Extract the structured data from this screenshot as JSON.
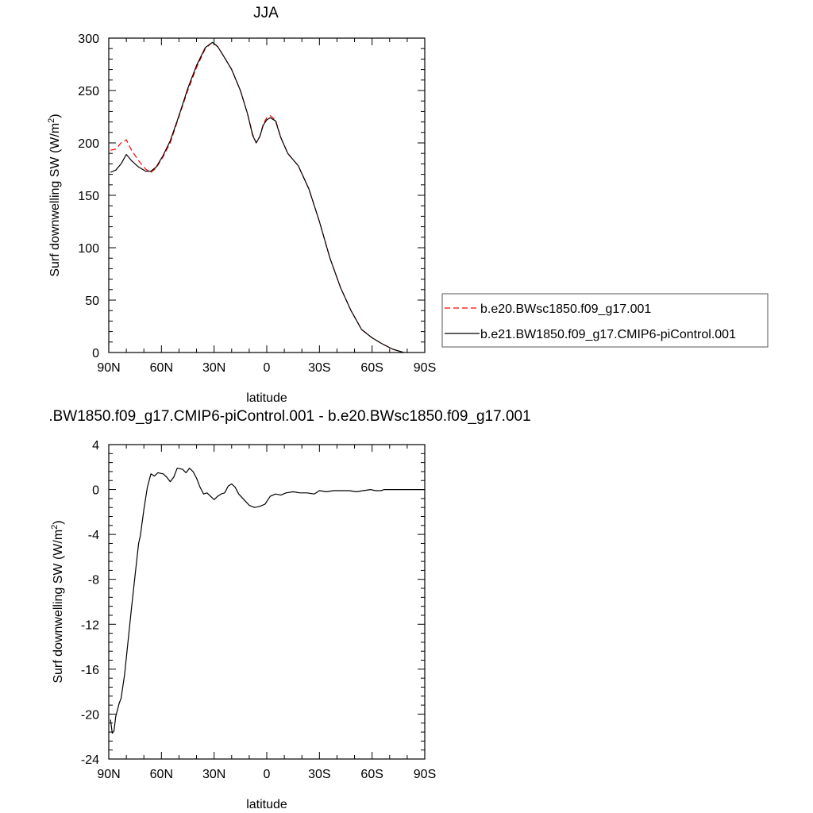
{
  "chart_data": [
    {
      "type": "line",
      "title": "JJA",
      "xlabel": "latitude",
      "ylabel": "Surf downwelling SW (W/m",
      "ylabel_sup": "2",
      "ylabel_close": ")",
      "xlim": [
        90,
        -90
      ],
      "ylim": [
        0,
        300
      ],
      "x_ticks": [
        {
          "v": 90,
          "label": "90N"
        },
        {
          "v": 60,
          "label": "60N"
        },
        {
          "v": 30,
          "label": "30N"
        },
        {
          "v": 0,
          "label": "0"
        },
        {
          "v": -30,
          "label": "30S"
        },
        {
          "v": -60,
          "label": "60S"
        },
        {
          "v": -90,
          "label": "90S"
        }
      ],
      "y_ticks": [
        {
          "v": 0,
          "label": "0"
        },
        {
          "v": 50,
          "label": "50"
        },
        {
          "v": 100,
          "label": "100"
        },
        {
          "v": 150,
          "label": "150"
        },
        {
          "v": 200,
          "label": "200"
        },
        {
          "v": 250,
          "label": "250"
        },
        {
          "v": 300,
          "label": "300"
        }
      ],
      "legend_position": "right",
      "series": [
        {
          "name": "b.e20.BWsc1850.f09_g17.001",
          "color": "#ff0000",
          "dash": true,
          "points": [
            [
              89,
              193
            ],
            [
              86,
              194
            ],
            [
              83,
              200
            ],
            [
              80,
              203
            ],
            [
              77,
              193
            ],
            [
              73,
              183
            ],
            [
              69,
              175
            ],
            [
              66,
              172
            ],
            [
              63,
              176
            ],
            [
              59,
              187
            ],
            [
              55,
              200
            ],
            [
              50,
              225
            ],
            [
              45,
              250
            ],
            [
              40,
              272
            ],
            [
              35,
              290
            ],
            [
              31,
              296
            ],
            [
              28,
              292
            ],
            [
              25,
              284
            ],
            [
              20,
              270
            ],
            [
              15,
              250
            ],
            [
              11,
              228
            ],
            [
              8,
              208
            ],
            [
              6,
              200
            ],
            [
              4,
              206
            ],
            [
              2,
              218
            ],
            [
              0,
              224
            ],
            [
              -2,
              226
            ],
            [
              -5,
              222
            ],
            [
              -8,
              205
            ],
            [
              -12,
              190
            ],
            [
              -18,
              178
            ],
            [
              -24,
              156
            ],
            [
              -30,
              125
            ],
            [
              -36,
              90
            ],
            [
              -42,
              62
            ],
            [
              -48,
              40
            ],
            [
              -54,
              22
            ],
            [
              -60,
              14
            ],
            [
              -66,
              8
            ],
            [
              -72,
              3
            ],
            [
              -78,
              0
            ]
          ]
        },
        {
          "name": "b.e21.BW1850.f09_g17.CMIP6-piControl.001",
          "color": "#000000",
          "dash": false,
          "points": [
            [
              89,
              172
            ],
            [
              86,
              174
            ],
            [
              83,
              180
            ],
            [
              80,
              189
            ],
            [
              77,
              183
            ],
            [
              73,
              177
            ],
            [
              69,
              173
            ],
            [
              66,
              173
            ],
            [
              63,
              177
            ],
            [
              59,
              188
            ],
            [
              55,
              202
            ],
            [
              50,
              226
            ],
            [
              45,
              252
            ],
            [
              40,
              274
            ],
            [
              35,
              291
            ],
            [
              31,
              296
            ],
            [
              28,
              292
            ],
            [
              25,
              284
            ],
            [
              20,
              270
            ],
            [
              15,
              250
            ],
            [
              11,
              228
            ],
            [
              8,
              207
            ],
            [
              6,
              200
            ],
            [
              4,
              206
            ],
            [
              2,
              217
            ],
            [
              0,
              222
            ],
            [
              -2,
              224
            ],
            [
              -5,
              221
            ],
            [
              -8,
              205
            ],
            [
              -12,
              190
            ],
            [
              -18,
              178
            ],
            [
              -24,
              156
            ],
            [
              -30,
              125
            ],
            [
              -36,
              90
            ],
            [
              -42,
              62
            ],
            [
              -48,
              40
            ],
            [
              -54,
              22
            ],
            [
              -60,
              14
            ],
            [
              -66,
              8
            ],
            [
              -72,
              3
            ],
            [
              -78,
              0
            ]
          ]
        }
      ]
    },
    {
      "type": "line",
      "title": ".BW1850.f09_g17.CMIP6-piControl.001 - b.e20.BWsc1850.f09_g17.001",
      "xlabel": "latitude",
      "ylabel": "Surf downwelling SW (W/m",
      "ylabel_sup": "2",
      "ylabel_close": ")",
      "xlim": [
        90,
        -90
      ],
      "ylim": [
        -24,
        4
      ],
      "x_ticks": [
        {
          "v": 90,
          "label": "90N"
        },
        {
          "v": 60,
          "label": "60N"
        },
        {
          "v": 30,
          "label": "30N"
        },
        {
          "v": 0,
          "label": "0"
        },
        {
          "v": -30,
          "label": "30S"
        },
        {
          "v": -60,
          "label": "60S"
        },
        {
          "v": -90,
          "label": "90S"
        }
      ],
      "y_ticks": [
        {
          "v": 4,
          "label": "4"
        },
        {
          "v": 0,
          "label": "0"
        },
        {
          "v": -4,
          "label": "-4"
        },
        {
          "v": -8,
          "label": "-8"
        },
        {
          "v": -12,
          "label": "-12"
        },
        {
          "v": -16,
          "label": "-16"
        },
        {
          "v": -20,
          "label": "-20"
        },
        {
          "v": -24,
          "label": "-24"
        }
      ],
      "series": [
        {
          "name": "",
          "color": "#000000",
          "dash": false,
          "points": [
            [
              89,
              -20.5
            ],
            [
              88,
              -21.7
            ],
            [
              87,
              -21.5
            ],
            [
              86,
              -20.2
            ],
            [
              84,
              -19.0
            ],
            [
              83,
              -18.6
            ],
            [
              81,
              -16.5
            ],
            [
              79,
              -13.5
            ],
            [
              77,
              -10.5
            ],
            [
              75,
              -7.6
            ],
            [
              73,
              -4.8
            ],
            [
              72,
              -4.1
            ],
            [
              70,
              -1.8
            ],
            [
              68,
              0.2
            ],
            [
              66,
              1.4
            ],
            [
              64,
              1.2
            ],
            [
              62,
              1.5
            ],
            [
              59,
              1.4
            ],
            [
              57,
              1.1
            ],
            [
              55,
              0.7
            ],
            [
              53,
              1.1
            ],
            [
              51,
              1.9
            ],
            [
              48,
              1.8
            ],
            [
              46,
              1.5
            ],
            [
              44,
              1.9
            ],
            [
              42,
              1.6
            ],
            [
              40,
              1.0
            ],
            [
              38,
              0.2
            ],
            [
              36,
              -0.4
            ],
            [
              34,
              -0.3
            ],
            [
              32,
              -0.6
            ],
            [
              30,
              -0.9
            ],
            [
              28,
              -0.6
            ],
            [
              26,
              -0.4
            ],
            [
              24,
              -0.3
            ],
            [
              22,
              0.3
            ],
            [
              20,
              0.5
            ],
            [
              18,
              0.2
            ],
            [
              16,
              -0.4
            ],
            [
              13,
              -0.9
            ],
            [
              10,
              -1.4
            ],
            [
              7,
              -1.6
            ],
            [
              4,
              -1.5
            ],
            [
              1,
              -1.3
            ],
            [
              -2,
              -0.6
            ],
            [
              -5,
              -0.4
            ],
            [
              -8,
              -0.5
            ],
            [
              -11,
              -0.3
            ],
            [
              -15,
              -0.2
            ],
            [
              -19,
              -0.3
            ],
            [
              -23,
              -0.3
            ],
            [
              -27,
              -0.4
            ],
            [
              -30,
              -0.1
            ],
            [
              -34,
              -0.2
            ],
            [
              -38,
              -0.1
            ],
            [
              -43,
              -0.1
            ],
            [
              -47,
              -0.1
            ],
            [
              -51,
              -0.2
            ],
            [
              -55,
              -0.1
            ],
            [
              -59,
              0.0
            ],
            [
              -62,
              -0.1
            ],
            [
              -65,
              -0.1
            ],
            [
              -67,
              0.0
            ],
            [
              -75,
              0.0
            ],
            [
              -90,
              0.0
            ]
          ]
        }
      ]
    }
  ]
}
